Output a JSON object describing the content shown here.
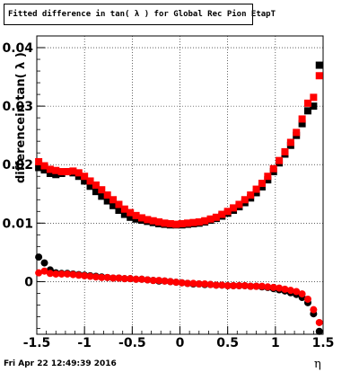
{
  "window": {
    "title": "Fitted difference in tan( λ ) for Global Rec Pion EtapT",
    "timestamp": "Fri Apr 22 12:49:39 2016"
  },
  "chart_data": {
    "type": "scatter",
    "title": "Fitted difference in tan( λ ) for Global Rec Pion EtapT",
    "xlabel": "η",
    "ylabel": "differencein tan( λ )",
    "xlim": [
      -1.5,
      1.5
    ],
    "ylim": [
      -0.009,
      0.042
    ],
    "x_ticks": [
      "-1.5",
      "-1",
      "-0.5",
      "0",
      "0.5",
      "1",
      "1.5"
    ],
    "y_ticks": [
      "0",
      "0.01",
      "0.02",
      "0.03",
      "0.04"
    ],
    "grid": true,
    "series": [
      {
        "marker": "square",
        "color": "#000000",
        "x": [
          -1.48,
          -1.42,
          -1.36,
          -1.3,
          -1.24,
          -1.18,
          -1.12,
          -1.06,
          -1.0,
          -0.94,
          -0.88,
          -0.82,
          -0.76,
          -0.7,
          -0.64,
          -0.58,
          -0.52,
          -0.46,
          -0.4,
          -0.34,
          -0.28,
          -0.22,
          -0.16,
          -0.1,
          -0.04,
          0.02,
          0.08,
          0.14,
          0.2,
          0.26,
          0.32,
          0.38,
          0.44,
          0.5,
          0.56,
          0.62,
          0.68,
          0.74,
          0.8,
          0.86,
          0.92,
          0.98,
          1.04,
          1.1,
          1.16,
          1.22,
          1.28,
          1.34,
          1.4,
          1.46
        ],
        "y": [
          0.0195,
          0.0191,
          0.0185,
          0.0183,
          0.0185,
          0.0188,
          0.0186,
          0.018,
          0.0172,
          0.0163,
          0.0154,
          0.0146,
          0.0138,
          0.013,
          0.0122,
          0.0115,
          0.011,
          0.0107,
          0.0105,
          0.0103,
          0.0101,
          0.0099,
          0.0098,
          0.0097,
          0.0097,
          0.0097,
          0.0098,
          0.0099,
          0.01,
          0.0102,
          0.0105,
          0.0108,
          0.0112,
          0.0117,
          0.0122,
          0.0128,
          0.0135,
          0.0143,
          0.0152,
          0.0162,
          0.0174,
          0.0188,
          0.0203,
          0.0218,
          0.0233,
          0.025,
          0.027,
          0.0292,
          0.03,
          0.037
        ]
      },
      {
        "marker": "square",
        "color": "#ff0000",
        "x": [
          -1.48,
          -1.42,
          -1.36,
          -1.3,
          -1.24,
          -1.18,
          -1.12,
          -1.06,
          -1.0,
          -0.94,
          -0.88,
          -0.82,
          -0.76,
          -0.7,
          -0.64,
          -0.58,
          -0.52,
          -0.46,
          -0.4,
          -0.34,
          -0.28,
          -0.22,
          -0.16,
          -0.1,
          -0.04,
          0.02,
          0.08,
          0.14,
          0.2,
          0.26,
          0.32,
          0.38,
          0.44,
          0.5,
          0.56,
          0.62,
          0.68,
          0.74,
          0.8,
          0.86,
          0.92,
          0.98,
          1.04,
          1.1,
          1.16,
          1.22,
          1.28,
          1.34,
          1.4,
          1.46
        ],
        "y": [
          0.0205,
          0.0198,
          0.0192,
          0.019,
          0.0188,
          0.0188,
          0.0189,
          0.0186,
          0.018,
          0.0172,
          0.0165,
          0.0157,
          0.0148,
          0.014,
          0.0132,
          0.0124,
          0.0118,
          0.0113,
          0.0109,
          0.0106,
          0.0104,
          0.0102,
          0.01,
          0.0099,
          0.0098,
          0.0099,
          0.01,
          0.0101,
          0.0102,
          0.0104,
          0.0107,
          0.011,
          0.0115,
          0.012,
          0.0126,
          0.0132,
          0.014,
          0.0148,
          0.0158,
          0.0168,
          0.018,
          0.0193,
          0.0207,
          0.0222,
          0.0238,
          0.0255,
          0.0278,
          0.0305,
          0.0315,
          0.0352
        ]
      },
      {
        "marker": "circle",
        "color": "#000000",
        "x": [
          -1.48,
          -1.42,
          -1.36,
          -1.3,
          -1.24,
          -1.18,
          -1.12,
          -1.06,
          -1.0,
          -0.94,
          -0.88,
          -0.82,
          -0.76,
          -0.7,
          -0.64,
          -0.58,
          -0.52,
          -0.46,
          -0.4,
          -0.34,
          -0.28,
          -0.22,
          -0.16,
          -0.1,
          -0.04,
          0.02,
          0.08,
          0.14,
          0.2,
          0.26,
          0.32,
          0.38,
          0.44,
          0.5,
          0.56,
          0.62,
          0.68,
          0.74,
          0.8,
          0.86,
          0.92,
          0.98,
          1.04,
          1.1,
          1.16,
          1.22,
          1.28,
          1.34,
          1.4,
          1.46
        ],
        "y": [
          0.0042,
          0.0032,
          0.002,
          0.0015,
          0.0014,
          0.0014,
          0.0013,
          0.0012,
          0.0011,
          0.001,
          0.0009,
          0.0008,
          0.0007,
          0.0006,
          0.0006,
          0.0005,
          0.0005,
          0.0004,
          0.0004,
          0.0003,
          0.0002,
          0.0001,
          0.0001,
          0.0,
          -0.0001,
          -0.0002,
          -0.0003,
          -0.0004,
          -0.0004,
          -0.0005,
          -0.0005,
          -0.0006,
          -0.0006,
          -0.0007,
          -0.0007,
          -0.0007,
          -0.0007,
          -0.0008,
          -0.0008,
          -0.0009,
          -0.001,
          -0.0012,
          -0.0014,
          -0.0016,
          -0.0019,
          -0.0022,
          -0.0027,
          -0.0036,
          -0.0055,
          -0.0085
        ]
      },
      {
        "marker": "circle",
        "color": "#ff0000",
        "x": [
          -1.48,
          -1.42,
          -1.36,
          -1.3,
          -1.24,
          -1.18,
          -1.12,
          -1.06,
          -1.0,
          -0.94,
          -0.88,
          -0.82,
          -0.76,
          -0.7,
          -0.64,
          -0.58,
          -0.52,
          -0.46,
          -0.4,
          -0.34,
          -0.28,
          -0.22,
          -0.16,
          -0.1,
          -0.04,
          0.02,
          0.08,
          0.14,
          0.2,
          0.26,
          0.32,
          0.38,
          0.44,
          0.5,
          0.56,
          0.62,
          0.68,
          0.74,
          0.8,
          0.86,
          0.92,
          0.98,
          1.04,
          1.1,
          1.16,
          1.22,
          1.28,
          1.34,
          1.4,
          1.46
        ],
        "y": [
          0.0015,
          0.0018,
          0.0014,
          0.0013,
          0.0013,
          0.0013,
          0.0012,
          0.0011,
          0.001,
          0.0009,
          0.0008,
          0.0007,
          0.0007,
          0.0006,
          0.0006,
          0.0005,
          0.0005,
          0.0004,
          0.0004,
          0.0003,
          0.0002,
          0.0002,
          0.0001,
          0.0,
          -0.0001,
          -0.0002,
          -0.0003,
          -0.0003,
          -0.0004,
          -0.0004,
          -0.0005,
          -0.0006,
          -0.0006,
          -0.0007,
          -0.0007,
          -0.0007,
          -0.0007,
          -0.0008,
          -0.0008,
          -0.0008,
          -0.0009,
          -0.001,
          -0.0011,
          -0.0013,
          -0.0015,
          -0.0017,
          -0.0021,
          -0.003,
          -0.0048,
          -0.007
        ]
      }
    ]
  }
}
